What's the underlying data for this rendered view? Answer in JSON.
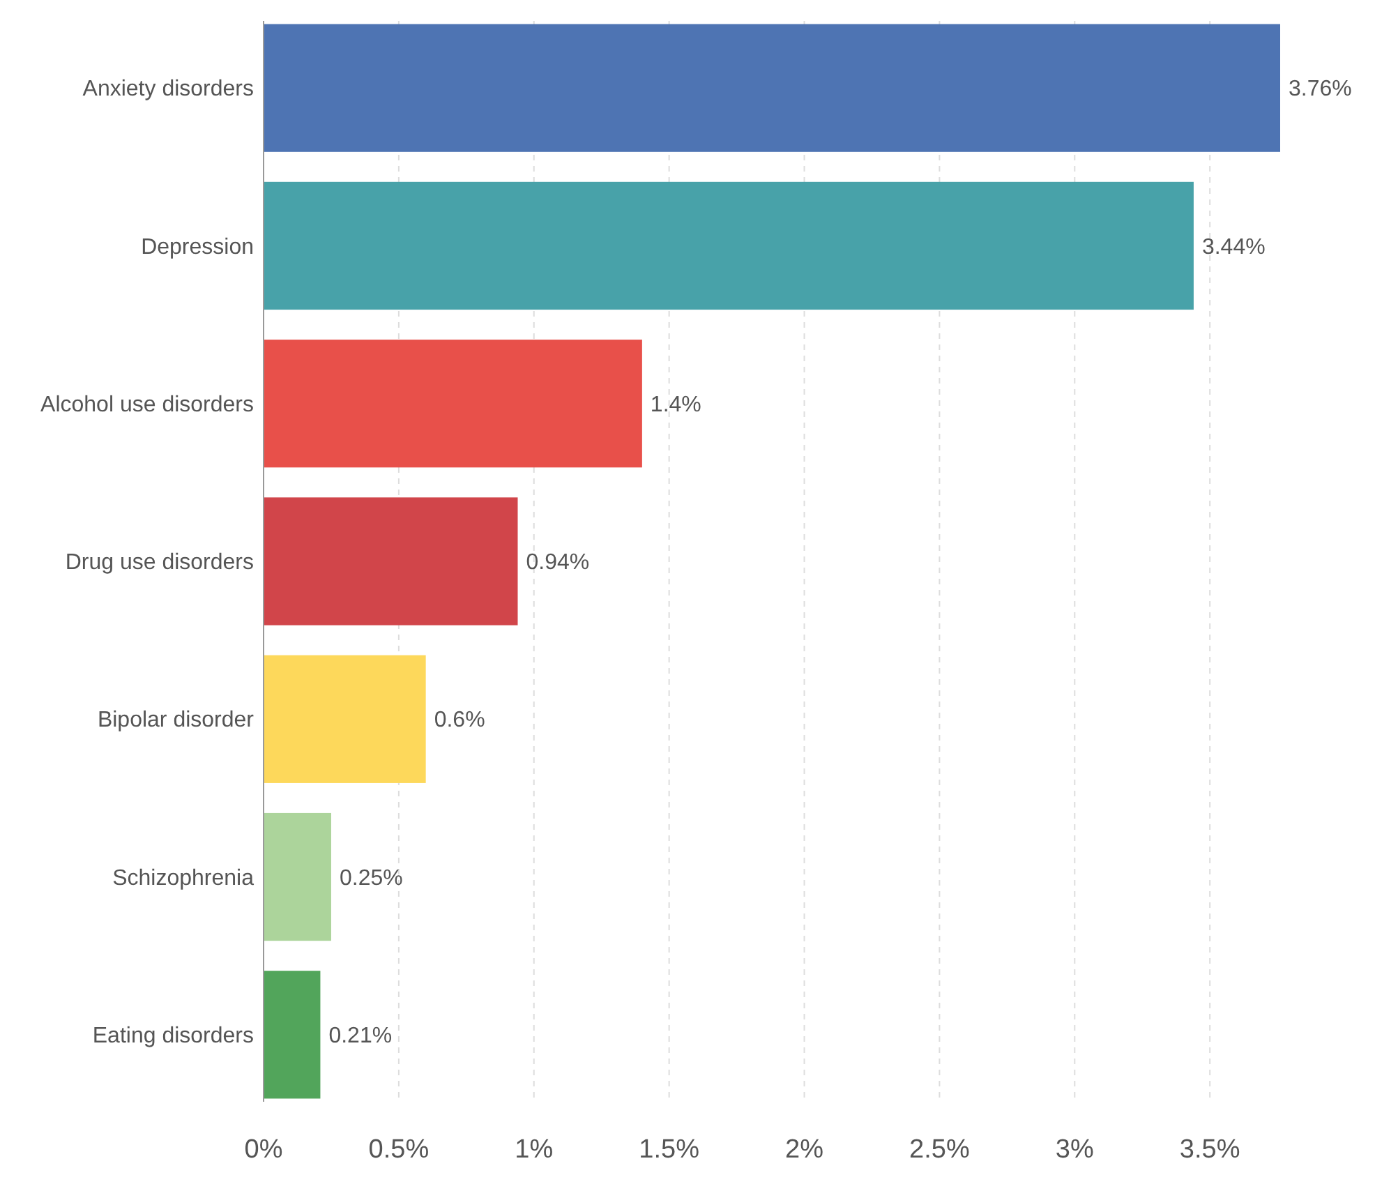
{
  "chart_data": {
    "type": "bar",
    "orientation": "horizontal",
    "categories": [
      "Anxiety disorders",
      "Depression",
      "Alcohol use disorders",
      "Drug use disorders",
      "Bipolar disorder",
      "Schizophrenia",
      "Eating disorders"
    ],
    "values": [
      3.76,
      3.44,
      1.4,
      0.94,
      0.6,
      0.25,
      0.21
    ],
    "value_labels": [
      "3.76%",
      "3.44%",
      "1.4%",
      "0.94%",
      "0.6%",
      "0.25%",
      "0.21%"
    ],
    "colors": [
      "#4e74b3",
      "#48a2a9",
      "#e8504a",
      "#d1454a",
      "#fdd85b",
      "#acd49b",
      "#52a55b"
    ],
    "xlim": [
      0,
      3.76
    ],
    "xticks": [
      {
        "value": 0,
        "label": "0%"
      },
      {
        "value": 0.5,
        "label": "0.5%"
      },
      {
        "value": 1,
        "label": "1%"
      },
      {
        "value": 1.5,
        "label": "1.5%"
      },
      {
        "value": 2,
        "label": "2%"
      },
      {
        "value": 2.5,
        "label": "2.5%"
      },
      {
        "value": 3,
        "label": "3%"
      },
      {
        "value": 3.5,
        "label": "3.5%"
      }
    ],
    "grid": "x"
  }
}
